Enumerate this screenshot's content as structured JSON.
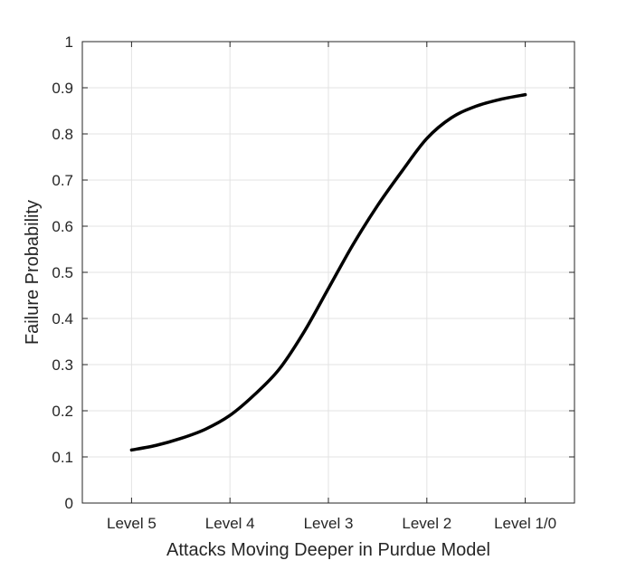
{
  "chart_data": {
    "type": "line",
    "title": "",
    "xlabel": "Attacks Moving Deeper in Purdue Model",
    "ylabel": "Failure Probability",
    "categories": [
      "Level 5",
      "Level 4",
      "Level 3",
      "Level 2",
      "Level 1/0"
    ],
    "x_positions": [
      1,
      2,
      3,
      4,
      5
    ],
    "xlim": [
      0.5,
      5.5
    ],
    "ylim": [
      0,
      1
    ],
    "yticks": [
      "0",
      "0.1",
      "0.2",
      "0.3",
      "0.4",
      "0.5",
      "0.6",
      "0.7",
      "0.8",
      "0.9",
      "1"
    ],
    "grid": true,
    "series": [
      {
        "color": "#000000",
        "x": [
          1.0,
          1.25,
          1.5,
          1.75,
          2.0,
          2.25,
          2.5,
          2.75,
          3.0,
          3.25,
          3.5,
          3.75,
          4.0,
          4.25,
          4.5,
          4.75,
          5.0
        ],
        "y": [
          0.115,
          0.125,
          0.14,
          0.16,
          0.19,
          0.235,
          0.29,
          0.37,
          0.465,
          0.56,
          0.645,
          0.72,
          0.79,
          0.835,
          0.86,
          0.875,
          0.885
        ]
      }
    ]
  }
}
